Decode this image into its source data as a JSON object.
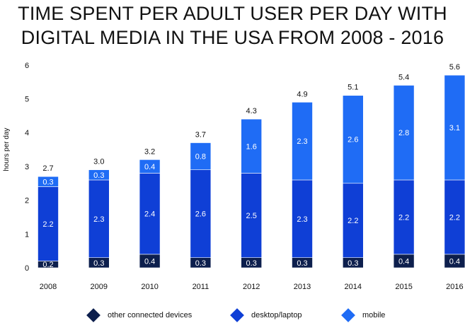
{
  "chart_data": {
    "type": "bar",
    "stacked": true,
    "title": "TIME SPENT PER ADULT USER PER DAY WITH\nDIGITAL MEDIA IN THE USA FROM 2008 - 2016",
    "ylabel": "hours per day",
    "xlabel": "",
    "ylim": [
      0,
      6
    ],
    "yticks": [
      "0",
      "1",
      "2",
      "3",
      "4",
      "5",
      "6"
    ],
    "categories": [
      "2008",
      "2009",
      "2010",
      "2011",
      "2012",
      "2013",
      "2014",
      "2015",
      "2016"
    ],
    "series": [
      {
        "name": "other connected devices",
        "color": "#0d1f4d",
        "values": [
          0.2,
          0.3,
          0.4,
          0.3,
          0.3,
          0.3,
          0.3,
          0.4,
          0.4
        ],
        "labels": [
          "0.2",
          "0.3",
          "0.4",
          "0.3",
          "0.3",
          "0.3",
          "0.3",
          "0.4",
          "0.4"
        ]
      },
      {
        "name": "desktop/laptop",
        "color": "#0f3fd6",
        "values": [
          2.2,
          2.3,
          2.4,
          2.6,
          2.5,
          2.3,
          2.2,
          2.2,
          2.2
        ],
        "labels": [
          "2.2",
          "2.3",
          "2.4",
          "2.6",
          "2.5",
          "2.3",
          "2.2",
          "2.2",
          "2.2"
        ]
      },
      {
        "name": "mobile",
        "color": "#1f6cf5",
        "values": [
          0.3,
          0.3,
          0.4,
          0.8,
          1.6,
          2.3,
          2.6,
          2.8,
          3.1
        ],
        "labels": [
          "0.3",
          "0.3",
          "0.4",
          "0.8",
          "1.6",
          "2.3",
          "2.6",
          "2.8",
          "3.1"
        ]
      }
    ],
    "totals": [
      "2.7",
      "3.0",
      "3.2",
      "3.7",
      "4.3",
      "4.9",
      "5.1",
      "5.4",
      "5.6"
    ],
    "grid": false,
    "legend_position": "bottom"
  }
}
